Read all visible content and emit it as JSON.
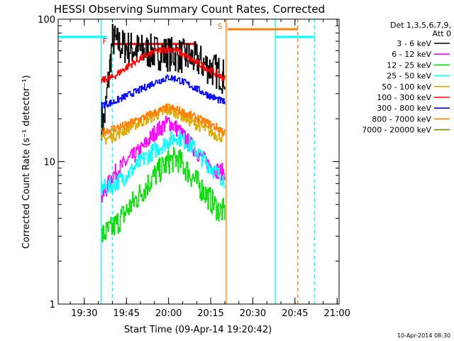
{
  "chart_data": {
    "type": "line",
    "title": "HESSI Observing Summary Count Rates, Corrected",
    "xlabel": "Start Time (09-Apr-14 19:20:42)",
    "ylabel": "Corrected Count Rate (s⁻¹ detector⁻¹)",
    "y_scale": "log",
    "ylim": [
      1,
      100
    ],
    "y_ticks": [
      {
        "value": 1,
        "label": "1"
      },
      {
        "value": 10,
        "label": "10"
      },
      {
        "value": 100,
        "label": "100"
      }
    ],
    "xlim": [
      "19:20:42",
      "21:00:42"
    ],
    "x_ticks": [
      "19:30",
      "19:45",
      "20:00",
      "20:15",
      "20:30",
      "20:45",
      "21:00"
    ],
    "timestamp": "10-Apr-2014 08:30",
    "legend": {
      "placement": "right",
      "header": [
        "Det 1,3,5,6,7,9,",
        "Att 0"
      ],
      "entries": [
        {
          "label": "3 - 6 keV",
          "color": "#000000"
        },
        {
          "label": "6 - 12 keV",
          "color": "#ff00ff"
        },
        {
          "label": "12 - 25 keV",
          "color": "#00dd00"
        },
        {
          "label": "25 - 50 keV",
          "color": "#00ffff"
        },
        {
          "label": "50 - 100 keV",
          "color": "#ddaa00"
        },
        {
          "label": "100 - 300 keV",
          "color": "#ff0000"
        },
        {
          "label": "300 - 800 keV",
          "color": "#0000ff"
        },
        {
          "label": "800 - 7000 keV",
          "color": "#ff7f00"
        },
        {
          "label": "7000 - 20000 keV",
          "color": "#808000"
        }
      ]
    },
    "series": [
      {
        "name": "3 - 6 keV",
        "color": "#000000",
        "noise": 0.25,
        "x": [
          "19:36",
          "19:37",
          "19:40",
          "19:43",
          "19:50",
          "19:58",
          "20:03",
          "20:10",
          "20:15",
          "20:18",
          "20:19",
          "20:20"
        ],
        "y": [
          19,
          19,
          72,
          65,
          60,
          58,
          56,
          52,
          45,
          42,
          40,
          40
        ]
      },
      {
        "name": "6 - 12 keV",
        "color": "#ff00ff",
        "noise": 0.12,
        "x": [
          "19:36",
          "19:37",
          "19:40",
          "19:45",
          "19:50",
          "19:55",
          "20:00",
          "20:03",
          "20:08",
          "20:13",
          "20:18",
          "20:20"
        ],
        "y": [
          5.5,
          6,
          8,
          10,
          12,
          16,
          19,
          17,
          13,
          10,
          8.5,
          8.5
        ]
      },
      {
        "name": "12 - 25 keV",
        "color": "#00dd00",
        "noise": 0.18,
        "x": [
          "19:36",
          "19:40",
          "19:45",
          "19:50",
          "19:55",
          "20:00",
          "20:03",
          "20:08",
          "20:13",
          "20:18",
          "20:20"
        ],
        "y": [
          3,
          3.4,
          4.5,
          6,
          8,
          10,
          10.5,
          8,
          6,
          4.5,
          4.5
        ]
      },
      {
        "name": "25 - 50 keV",
        "color": "#00ffff",
        "noise": 0.12,
        "x": [
          "19:36",
          "19:40",
          "19:45",
          "19:50",
          "19:55",
          "20:00",
          "20:03",
          "20:08",
          "20:13",
          "20:18",
          "20:20"
        ],
        "y": [
          6.5,
          6.8,
          8,
          10,
          12,
          14,
          15,
          13,
          10,
          8,
          7.5
        ]
      },
      {
        "name": "50 - 100 keV",
        "color": "#ddaa00",
        "noise": 0.08,
        "x": [
          "19:36",
          "19:40",
          "19:45",
          "19:50",
          "19:55",
          "20:00",
          "20:03",
          "20:08",
          "20:13",
          "20:18",
          "20:20"
        ],
        "y": [
          14,
          15,
          17,
          19,
          21,
          23,
          22,
          19,
          17,
          15,
          15
        ]
      },
      {
        "name": "100 - 300 keV",
        "color": "#ff0000",
        "noise": 0.05,
        "x": [
          "19:36",
          "19:40",
          "19:45",
          "19:50",
          "19:55",
          "20:00",
          "20:03",
          "20:08",
          "20:13",
          "20:18",
          "20:20"
        ],
        "y": [
          37,
          39,
          46,
          53,
          59,
          62,
          60,
          52,
          46,
          40,
          38
        ]
      },
      {
        "name": "300 - 800 keV",
        "color": "#0000ff",
        "noise": 0.05,
        "x": [
          "19:36",
          "19:40",
          "19:45",
          "19:50",
          "19:55",
          "20:00",
          "20:03",
          "20:08",
          "20:13",
          "20:18",
          "20:20"
        ],
        "y": [
          25,
          26,
          29,
          32,
          36,
          39,
          38,
          34,
          30,
          27,
          26
        ]
      },
      {
        "name": "800 - 7000 keV",
        "color": "#ff7f00",
        "noise": 0.06,
        "x": [
          "19:36",
          "19:40",
          "19:45",
          "19:50",
          "19:55",
          "20:00",
          "20:03",
          "20:08",
          "20:13",
          "20:18",
          "20:20"
        ],
        "y": [
          16,
          17,
          18,
          20,
          22,
          24,
          23,
          21,
          19,
          17,
          16
        ]
      }
    ],
    "annotations": [
      {
        "type": "hline",
        "label": "",
        "color": "#00ffff",
        "from": "19:20:42",
        "to": "19:38",
        "value": 75
      },
      {
        "type": "hline",
        "label": "",
        "color": "#00ffff",
        "from": "20:38",
        "to": "20:52",
        "value": 75
      },
      {
        "type": "hline",
        "label": "F",
        "color": "#ff0000",
        "from": "19:40",
        "to": "20:10",
        "value": 67
      },
      {
        "type": "hline",
        "label": "S",
        "color": "#ff7f00",
        "from": "20:21",
        "to": "20:46",
        "value": 85
      },
      {
        "type": "vline",
        "color": "#00ffff",
        "dashed": false,
        "at": "19:36"
      },
      {
        "type": "vline",
        "color": "#00ffff",
        "dashed": true,
        "at": "19:40"
      },
      {
        "type": "vline",
        "color": "#ff7f00",
        "dashed": false,
        "at": "20:20:30"
      },
      {
        "type": "vline",
        "color": "#00ffff",
        "dashed": false,
        "at": "20:38"
      },
      {
        "type": "vline",
        "color": "#ff7f00",
        "dashed": true,
        "at": "20:46"
      },
      {
        "type": "vline",
        "color": "#00ffff",
        "dashed": true,
        "at": "20:52"
      }
    ]
  }
}
